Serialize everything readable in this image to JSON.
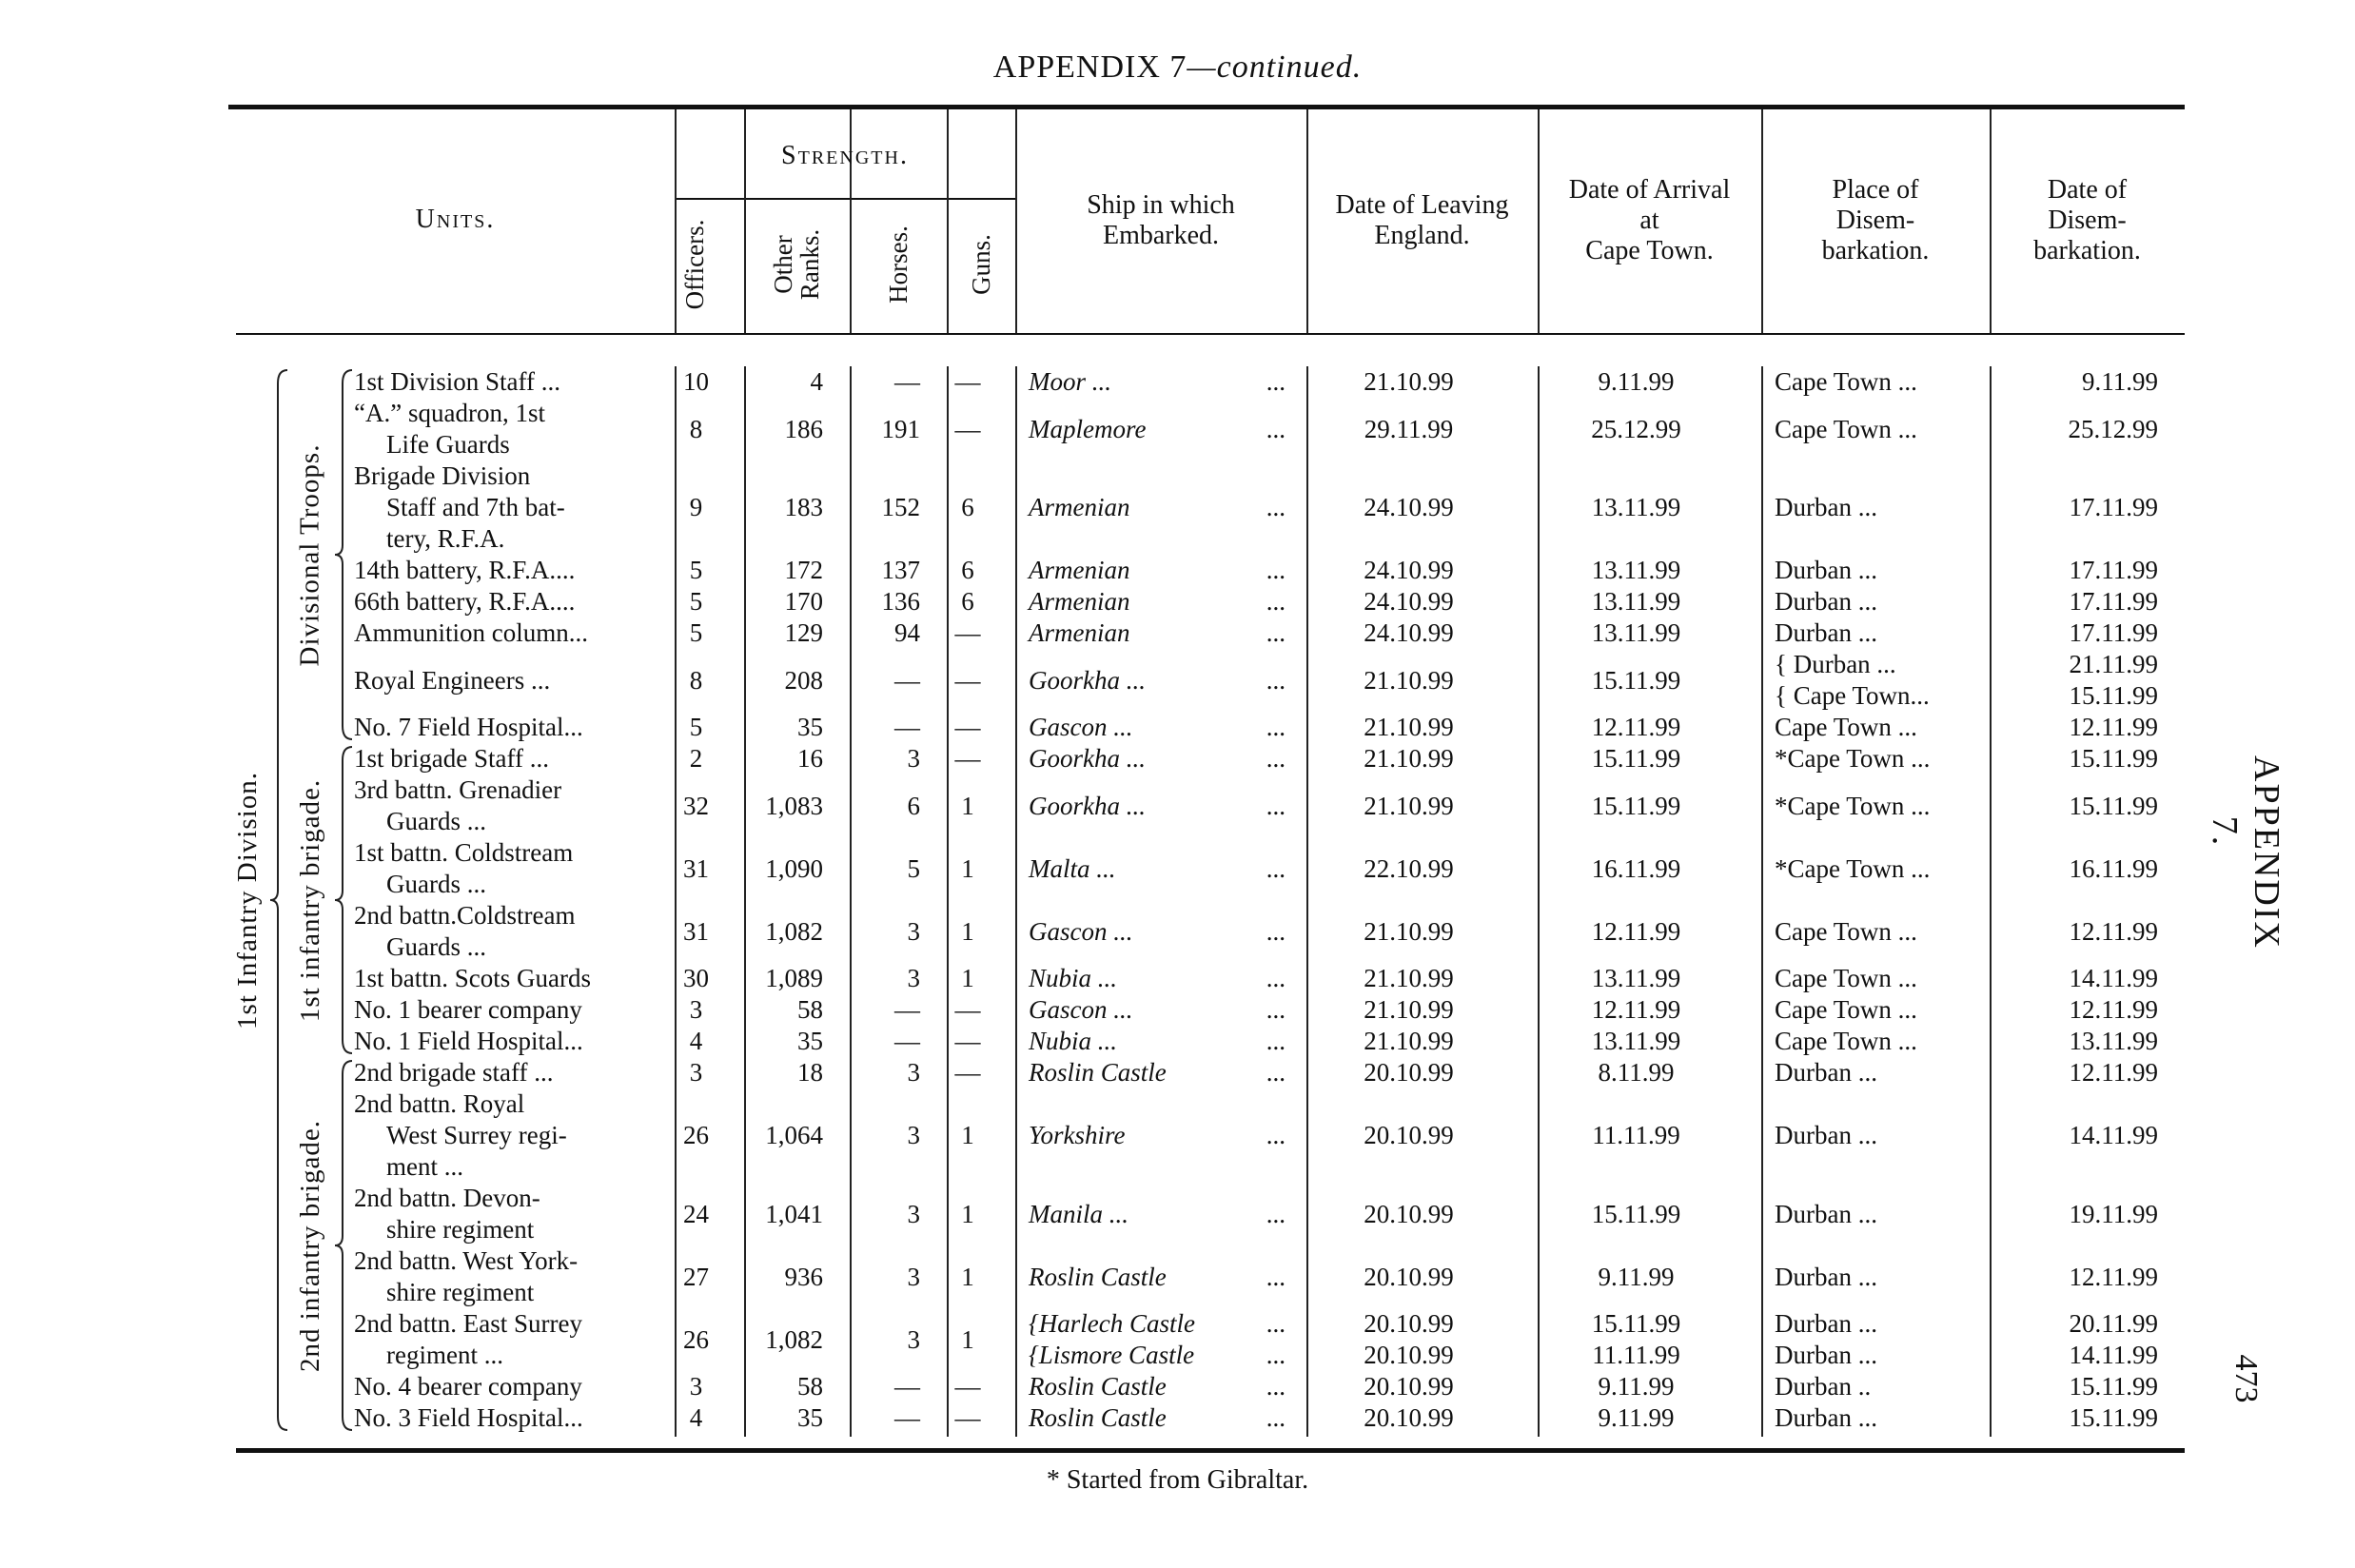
{
  "page": {
    "title_main": "APPENDIX 7",
    "title_cont": "—continued.",
    "side_heading": "APPENDIX 7.",
    "page_number": "473",
    "footnote": "* Started from Gibraltar."
  },
  "headers": {
    "units": "Units.",
    "strength": "Strength.",
    "officers": "Officers.",
    "other_ranks_1": "Other",
    "other_ranks_2": "Ranks.",
    "horses": "Horses.",
    "guns": "Guns.",
    "ship": [
      "Ship in which",
      "Embarked."
    ],
    "leaving": [
      "Date of Leaving",
      "England."
    ],
    "arrival": [
      "Date of Arrival",
      "at",
      "Cape Town."
    ],
    "place": [
      "Place of",
      "Disem-",
      "barkation."
    ],
    "disembarkation": [
      "Date of",
      "Disem-",
      "barkation."
    ]
  },
  "groups": {
    "division": "1st Infantry Division.",
    "divisional_troops": "Divisional Troops.",
    "first_brigade": "1st infantry brigade.",
    "second_brigade": "2nd infantry brigade."
  },
  "rows": [
    {
      "lines": 1,
      "unit": [
        "1st Division Staff ..."
      ],
      "officers": "10",
      "other_ranks": "4",
      "horses": "—",
      "guns": "—",
      "ship": [
        "Moor ..."
      ],
      "leaving": [
        "21.10.99"
      ],
      "arrival": [
        "9.11.99"
      ],
      "place": [
        "Cape Town ..."
      ],
      "disembarkation": [
        "9.11.99"
      ]
    },
    {
      "lines": 2,
      "unit": [
        "“A.” squadron, 1st",
        "Life Guards"
      ],
      "officers": "8",
      "other_ranks": "186",
      "horses": "191",
      "guns": "—",
      "ship": [
        "Maplemore"
      ],
      "leaving": [
        "29.11.99"
      ],
      "arrival": [
        "25.12.99"
      ],
      "place": [
        "Cape Town ..."
      ],
      "disembarkation": [
        "25.12.99"
      ]
    },
    {
      "lines": 3,
      "unit": [
        "Brigade Division",
        "Staff and 7th bat-",
        "tery, R.F.A."
      ],
      "officers": "9",
      "other_ranks": "183",
      "horses": "152",
      "guns": "6",
      "ship": [
        "Armenian"
      ],
      "leaving": [
        "24.10.99"
      ],
      "arrival": [
        "13.11.99"
      ],
      "place": [
        "Durban ..."
      ],
      "disembarkation": [
        "17.11.99"
      ]
    },
    {
      "lines": 1,
      "unit": [
        "14th battery, R.F.A...."
      ],
      "officers": "5",
      "other_ranks": "172",
      "horses": "137",
      "guns": "6",
      "ship": [
        "Armenian"
      ],
      "leaving": [
        "24.10.99"
      ],
      "arrival": [
        "13.11.99"
      ],
      "place": [
        "Durban ..."
      ],
      "disembarkation": [
        "17.11.99"
      ]
    },
    {
      "lines": 1,
      "unit": [
        "66th battery, R.F.A...."
      ],
      "officers": "5",
      "other_ranks": "170",
      "horses": "136",
      "guns": "6",
      "ship": [
        "Armenian"
      ],
      "leaving": [
        "24.10.99"
      ],
      "arrival": [
        "13.11.99"
      ],
      "place": [
        "Durban ..."
      ],
      "disembarkation": [
        "17.11.99"
      ]
    },
    {
      "lines": 1,
      "unit": [
        "Ammunition column..."
      ],
      "officers": "5",
      "other_ranks": "129",
      "horses": "94",
      "guns": "—",
      "ship": [
        "Armenian"
      ],
      "leaving": [
        "24.10.99"
      ],
      "arrival": [
        "13.11.99"
      ],
      "place": [
        "Durban ..."
      ],
      "disembarkation": [
        "17.11.99"
      ]
    },
    {
      "lines": 2,
      "unit": [
        "Royal Engineers ..."
      ],
      "officers": "8",
      "other_ranks": "208",
      "horses": "—",
      "guns": "—",
      "ship": [
        "Goorkha ..."
      ],
      "leaving": [
        "21.10.99"
      ],
      "arrival": [
        "15.11.99"
      ],
      "place": [
        "{ Durban ...",
        "{ Cape Town..."
      ],
      "disembarkation": [
        "21.11.99",
        "15.11.99"
      ]
    },
    {
      "lines": 1,
      "unit": [
        "No. 7 Field Hospital..."
      ],
      "officers": "5",
      "other_ranks": "35",
      "horses": "—",
      "guns": "—",
      "ship": [
        "Gascon ..."
      ],
      "leaving": [
        "21.10.99"
      ],
      "arrival": [
        "12.11.99"
      ],
      "place": [
        "Cape Town ..."
      ],
      "disembarkation": [
        "12.11.99"
      ]
    },
    {
      "lines": 1,
      "unit": [
        "1st brigade Staff ..."
      ],
      "officers": "2",
      "other_ranks": "16",
      "horses": "3",
      "guns": "—",
      "ship": [
        "Goorkha ..."
      ],
      "leaving": [
        "21.10.99"
      ],
      "arrival": [
        "15.11.99"
      ],
      "place": [
        "*Cape Town ..."
      ],
      "disembarkation": [
        "15.11.99"
      ]
    },
    {
      "lines": 2,
      "unit": [
        "3rd battn. Grenadier",
        "Guards ..."
      ],
      "officers": "32",
      "other_ranks": "1,083",
      "horses": "6",
      "guns": "1",
      "ship": [
        "Goorkha ..."
      ],
      "leaving": [
        "21.10.99"
      ],
      "arrival": [
        "15.11.99"
      ],
      "place": [
        "*Cape Town ..."
      ],
      "disembarkation": [
        "15.11.99"
      ]
    },
    {
      "lines": 2,
      "unit": [
        "1st battn. Coldstream",
        "Guards ..."
      ],
      "officers": "31",
      "other_ranks": "1,090",
      "horses": "5",
      "guns": "1",
      "ship": [
        "Malta ..."
      ],
      "leaving": [
        "22.10.99"
      ],
      "arrival": [
        "16.11.99"
      ],
      "place": [
        "*Cape Town ..."
      ],
      "disembarkation": [
        "16.11.99"
      ]
    },
    {
      "lines": 2,
      "unit": [
        "2nd battn.Coldstream",
        "Guards ..."
      ],
      "officers": "31",
      "other_ranks": "1,082",
      "horses": "3",
      "guns": "1",
      "ship": [
        "Gascon ..."
      ],
      "leaving": [
        "21.10.99"
      ],
      "arrival": [
        "12.11.99"
      ],
      "place": [
        "Cape Town ..."
      ],
      "disembarkation": [
        "12.11.99"
      ]
    },
    {
      "lines": 1,
      "unit": [
        "1st battn. Scots Guards"
      ],
      "officers": "30",
      "other_ranks": "1,089",
      "horses": "3",
      "guns": "1",
      "ship": [
        "Nubia ..."
      ],
      "leaving": [
        "21.10.99"
      ],
      "arrival": [
        "13.11.99"
      ],
      "place": [
        "Cape Town ..."
      ],
      "disembarkation": [
        "14.11.99"
      ]
    },
    {
      "lines": 1,
      "unit": [
        "No. 1 bearer company"
      ],
      "officers": "3",
      "other_ranks": "58",
      "horses": "—",
      "guns": "—",
      "ship": [
        "Gascon ..."
      ],
      "leaving": [
        "21.10.99"
      ],
      "arrival": [
        "12.11.99"
      ],
      "place": [
        "Cape Town ..."
      ],
      "disembarkation": [
        "12.11.99"
      ]
    },
    {
      "lines": 1,
      "unit": [
        "No. 1 Field Hospital..."
      ],
      "officers": "4",
      "other_ranks": "35",
      "horses": "—",
      "guns": "—",
      "ship": [
        "Nubia ..."
      ],
      "leaving": [
        "21.10.99"
      ],
      "arrival": [
        "13.11.99"
      ],
      "place": [
        "Cape Town ..."
      ],
      "disembarkation": [
        "13.11.99"
      ]
    },
    {
      "lines": 1,
      "unit": [
        "2nd brigade staff ..."
      ],
      "officers": "3",
      "other_ranks": "18",
      "horses": "3",
      "guns": "—",
      "ship": [
        "Roslin Castle"
      ],
      "leaving": [
        "20.10.99"
      ],
      "arrival": [
        "8.11.99"
      ],
      "place": [
        "Durban ..."
      ],
      "disembarkation": [
        "12.11.99"
      ]
    },
    {
      "lines": 3,
      "unit": [
        "2nd battn. Royal",
        "West Surrey regi-",
        "ment ..."
      ],
      "officers": "26",
      "other_ranks": "1,064",
      "horses": "3",
      "guns": "1",
      "ship": [
        "Yorkshire"
      ],
      "leaving": [
        "20.10.99"
      ],
      "arrival": [
        "11.11.99"
      ],
      "place": [
        "Durban ..."
      ],
      "disembarkation": [
        "14.11.99"
      ]
    },
    {
      "lines": 2,
      "unit": [
        "2nd battn. Devon-",
        "shire regiment"
      ],
      "officers": "24",
      "other_ranks": "1,041",
      "horses": "3",
      "guns": "1",
      "ship": [
        "Manila ..."
      ],
      "leaving": [
        "20.10.99"
      ],
      "arrival": [
        "15.11.99"
      ],
      "place": [
        "Durban ..."
      ],
      "disembarkation": [
        "19.11.99"
      ]
    },
    {
      "lines": 2,
      "unit": [
        "2nd battn. West York-",
        "shire regiment"
      ],
      "officers": "27",
      "other_ranks": "936",
      "horses": "3",
      "guns": "1",
      "ship": [
        "Roslin Castle"
      ],
      "leaving": [
        "20.10.99"
      ],
      "arrival": [
        "9.11.99"
      ],
      "place": [
        "Durban ..."
      ],
      "disembarkation": [
        "12.11.99"
      ]
    },
    {
      "lines": 2,
      "unit": [
        "2nd battn. East Surrey",
        "regiment ..."
      ],
      "officers": "26",
      "other_ranks": "1,082",
      "horses": "3",
      "guns": "1",
      "ship": [
        "{Harlech Castle",
        "{Lismore Castle"
      ],
      "leaving": [
        "20.10.99",
        "20.10.99"
      ],
      "arrival": [
        "15.11.99",
        "11.11.99"
      ],
      "place": [
        "Durban ...",
        "Durban ..."
      ],
      "disembarkation": [
        "20.11.99",
        "14.11.99"
      ]
    },
    {
      "lines": 1,
      "unit": [
        "No. 4 bearer company"
      ],
      "officers": "3",
      "other_ranks": "58",
      "horses": "—",
      "guns": "—",
      "ship": [
        "Roslin Castle"
      ],
      "leaving": [
        "20.10.99"
      ],
      "arrival": [
        "9.11.99"
      ],
      "place": [
        "Durban .."
      ],
      "disembarkation": [
        "15.11.99"
      ]
    },
    {
      "lines": 1,
      "unit": [
        "No. 3 Field Hospital..."
      ],
      "officers": "4",
      "other_ranks": "35",
      "horses": "—",
      "guns": "—",
      "ship": [
        "Roslin Castle"
      ],
      "leaving": [
        "20.10.99"
      ],
      "arrival": [
        "9.11.99"
      ],
      "place": [
        "Durban ..."
      ],
      "disembarkation": [
        "15.11.99"
      ]
    }
  ]
}
